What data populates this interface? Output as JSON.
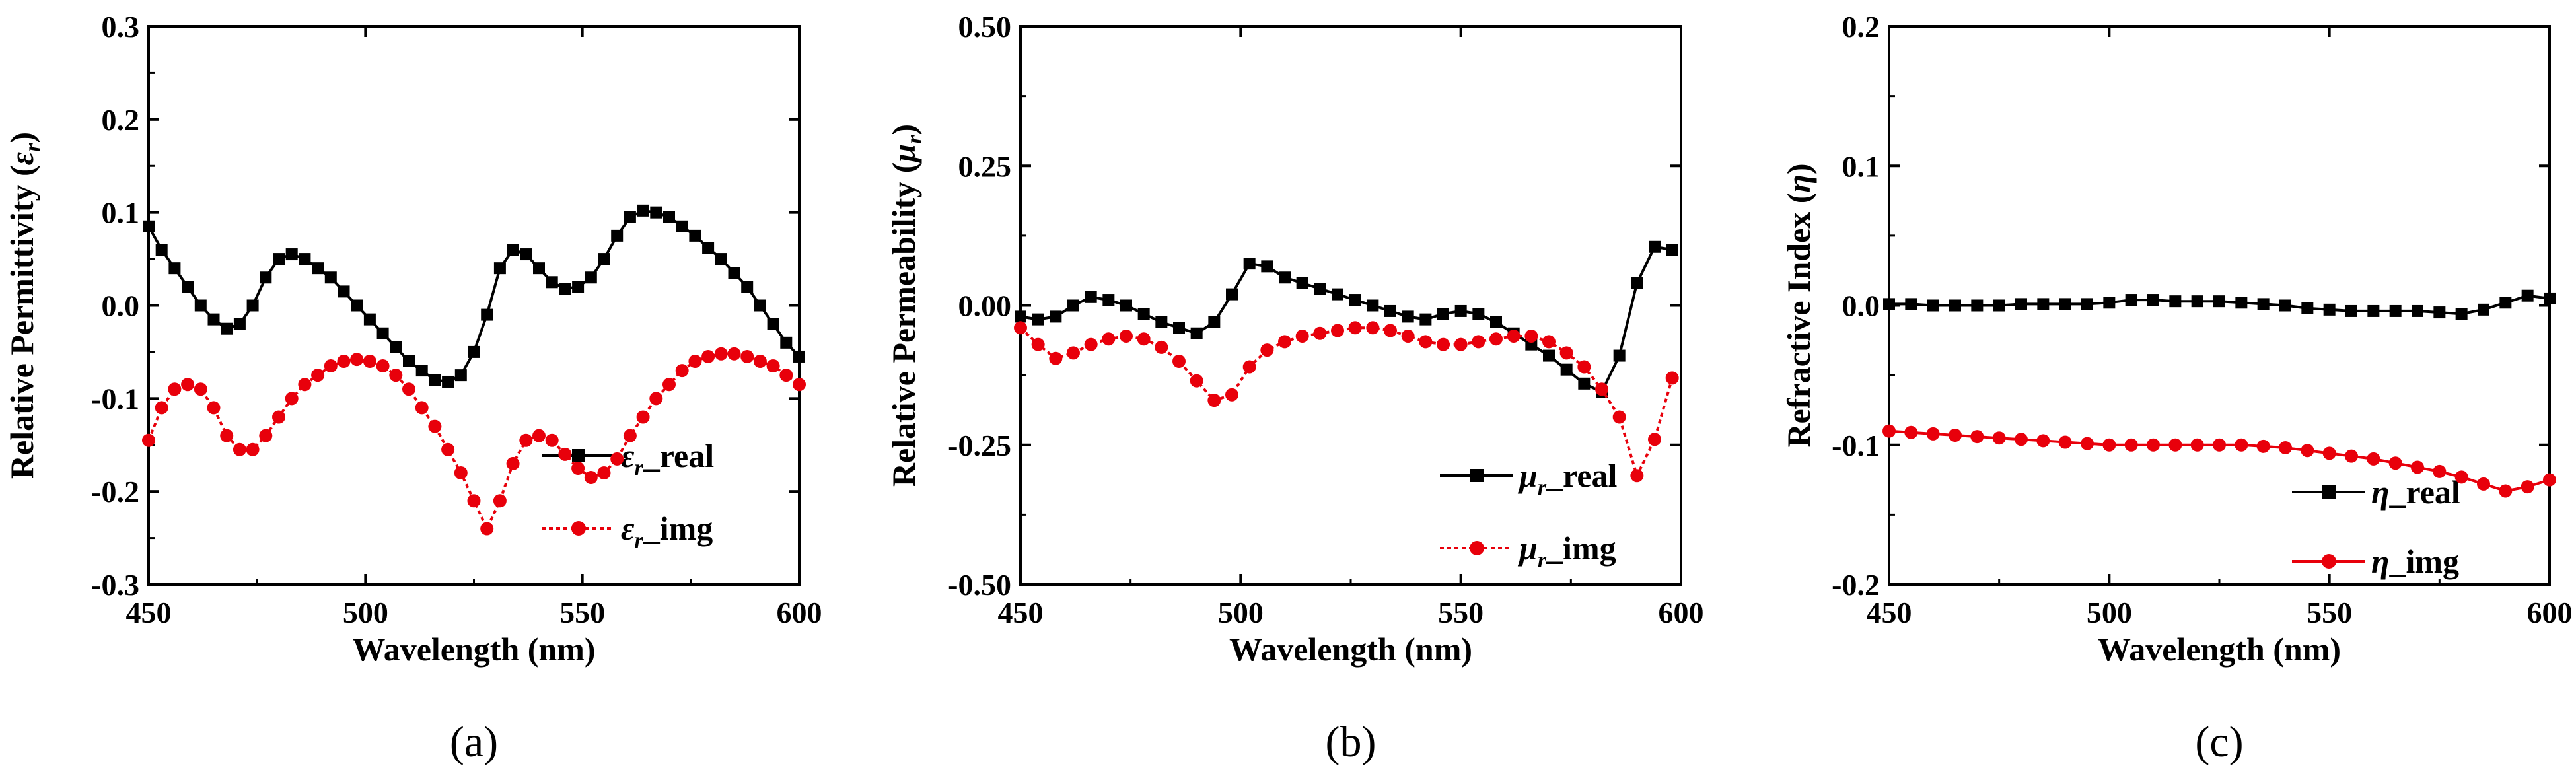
{
  "chart_data": [
    {
      "type": "line",
      "panel_label": "(a)",
      "xlabel": "Wavelength (nm)",
      "ylabel_prefix": "Relative Permittivity (",
      "ylabel_symbol": "ε",
      "ylabel_sub": "r",
      "ylabel_suffix": ")",
      "xlim": [
        450,
        600
      ],
      "ylim": [
        -0.3,
        0.3
      ],
      "xticks": [
        450,
        500,
        550,
        600
      ],
      "xtick_labels": [
        "450",
        "500",
        "550",
        "600"
      ],
      "yticks": [
        -0.3,
        -0.2,
        -0.1,
        0.0,
        0.1,
        0.2,
        0.3
      ],
      "ytick_labels": [
        "-0.3",
        "-0.2",
        "-0.1",
        "0.0",
        "0.1",
        "0.2",
        "0.3"
      ],
      "legend_position": "lower-right",
      "series": [
        {
          "name": "ε_r_real",
          "legend_symbol": "ε",
          "legend_sub": "r",
          "legend_suffix": "_real",
          "color": "#000000",
          "marker": "square",
          "dash": false,
          "x": [
            450,
            453,
            456,
            459,
            462,
            465,
            468,
            471,
            474,
            477,
            480,
            483,
            486,
            489,
            492,
            495,
            498,
            501,
            504,
            507,
            510,
            513,
            516,
            519,
            522,
            525,
            528,
            531,
            534,
            537,
            540,
            543,
            546,
            549,
            552,
            555,
            558,
            561,
            564,
            567,
            570,
            573,
            576,
            579,
            582,
            585,
            588,
            591,
            594,
            597,
            600
          ],
          "y": [
            0.085,
            0.06,
            0.04,
            0.02,
            0.0,
            -0.015,
            -0.025,
            -0.02,
            0.0,
            0.03,
            0.05,
            0.055,
            0.05,
            0.04,
            0.03,
            0.015,
            0.0,
            -0.015,
            -0.03,
            -0.045,
            -0.06,
            -0.07,
            -0.08,
            -0.082,
            -0.075,
            -0.05,
            -0.01,
            0.04,
            0.06,
            0.055,
            0.04,
            0.025,
            0.018,
            0.02,
            0.03,
            0.05,
            0.075,
            0.095,
            0.102,
            0.1,
            0.095,
            0.085,
            0.075,
            0.062,
            0.05,
            0.035,
            0.02,
            0.0,
            -0.02,
            -0.04,
            -0.055
          ]
        },
        {
          "name": "ε_r_img",
          "legend_symbol": "ε",
          "legend_sub": "r",
          "legend_suffix": "_img",
          "color": "#e8000b",
          "marker": "circle",
          "dash": true,
          "x": [
            450,
            453,
            456,
            459,
            462,
            465,
            468,
            471,
            474,
            477,
            480,
            483,
            486,
            489,
            492,
            495,
            498,
            501,
            504,
            507,
            510,
            513,
            516,
            519,
            522,
            525,
            528,
            531,
            534,
            537,
            540,
            543,
            546,
            549,
            552,
            555,
            558,
            561,
            564,
            567,
            570,
            573,
            576,
            579,
            582,
            585,
            588,
            591,
            594,
            597,
            600
          ],
          "y": [
            -0.145,
            -0.11,
            -0.09,
            -0.085,
            -0.09,
            -0.11,
            -0.14,
            -0.155,
            -0.155,
            -0.14,
            -0.12,
            -0.1,
            -0.085,
            -0.075,
            -0.065,
            -0.06,
            -0.058,
            -0.06,
            -0.065,
            -0.075,
            -0.09,
            -0.11,
            -0.13,
            -0.155,
            -0.18,
            -0.21,
            -0.24,
            -0.21,
            -0.17,
            -0.145,
            -0.14,
            -0.145,
            -0.16,
            -0.175,
            -0.185,
            -0.18,
            -0.165,
            -0.14,
            -0.12,
            -0.1,
            -0.085,
            -0.07,
            -0.06,
            -0.055,
            -0.052,
            -0.052,
            -0.055,
            -0.06,
            -0.065,
            -0.075,
            -0.085
          ]
        }
      ]
    },
    {
      "type": "line",
      "panel_label": "(b)",
      "xlabel": "Wavelength (nm)",
      "ylabel_prefix": "Relative Permeability (",
      "ylabel_symbol": "μ",
      "ylabel_sub": "r",
      "ylabel_suffix": ")",
      "xlim": [
        450,
        600
      ],
      "ylim": [
        -0.5,
        0.5
      ],
      "xticks": [
        450,
        500,
        550,
        600
      ],
      "xtick_labels": [
        "450",
        "500",
        "550",
        "600"
      ],
      "yticks": [
        -0.5,
        -0.25,
        0.0,
        0.25,
        0.5
      ],
      "ytick_labels": [
        "-0.50",
        "-0.25",
        "0.00",
        "0.25",
        "0.50"
      ],
      "legend_position": "lower-right",
      "series": [
        {
          "name": "μ_r_real",
          "legend_symbol": "μ",
          "legend_sub": "r",
          "legend_suffix": "_real",
          "color": "#000000",
          "marker": "square",
          "dash": false,
          "x": [
            450,
            454,
            458,
            462,
            466,
            470,
            474,
            478,
            482,
            486,
            490,
            494,
            498,
            502,
            506,
            510,
            514,
            518,
            522,
            526,
            530,
            534,
            538,
            542,
            546,
            550,
            554,
            558,
            562,
            566,
            570,
            574,
            578,
            582,
            586,
            590,
            594,
            598
          ],
          "y": [
            -0.02,
            -0.025,
            -0.02,
            0.0,
            0.015,
            0.01,
            0.0,
            -0.015,
            -0.03,
            -0.04,
            -0.05,
            -0.03,
            0.02,
            0.075,
            0.07,
            0.05,
            0.04,
            0.03,
            0.02,
            0.01,
            0.0,
            -0.01,
            -0.02,
            -0.025,
            -0.015,
            -0.01,
            -0.015,
            -0.03,
            -0.05,
            -0.07,
            -0.09,
            -0.115,
            -0.14,
            -0.155,
            -0.09,
            0.04,
            0.105,
            0.1
          ]
        },
        {
          "name": "μ_r_img",
          "legend_symbol": "μ",
          "legend_sub": "r",
          "legend_suffix": "_img",
          "color": "#e8000b",
          "marker": "circle",
          "dash": true,
          "x": [
            450,
            454,
            458,
            462,
            466,
            470,
            474,
            478,
            482,
            486,
            490,
            494,
            498,
            502,
            506,
            510,
            514,
            518,
            522,
            526,
            530,
            534,
            538,
            542,
            546,
            550,
            554,
            558,
            562,
            566,
            570,
            574,
            578,
            582,
            586,
            590,
            594,
            598
          ],
          "y": [
            -0.04,
            -0.07,
            -0.095,
            -0.085,
            -0.07,
            -0.06,
            -0.055,
            -0.06,
            -0.075,
            -0.1,
            -0.135,
            -0.17,
            -0.16,
            -0.11,
            -0.08,
            -0.065,
            -0.055,
            -0.05,
            -0.045,
            -0.04,
            -0.04,
            -0.045,
            -0.055,
            -0.065,
            -0.07,
            -0.07,
            -0.065,
            -0.06,
            -0.055,
            -0.055,
            -0.065,
            -0.085,
            -0.11,
            -0.15,
            -0.2,
            -0.305,
            -0.24,
            -0.13
          ]
        }
      ]
    },
    {
      "type": "line",
      "panel_label": "(c)",
      "xlabel": "Wavelength (nm)",
      "ylabel_prefix": "Refractive Index (",
      "ylabel_symbol": "η",
      "ylabel_sub": "",
      "ylabel_suffix": ")",
      "xlim": [
        450,
        600
      ],
      "ylim": [
        -0.2,
        0.2
      ],
      "xticks": [
        450,
        500,
        550,
        600
      ],
      "xtick_labels": [
        "450",
        "500",
        "550",
        "600"
      ],
      "yticks": [
        -0.2,
        -0.1,
        0.0,
        0.1,
        0.2
      ],
      "ytick_labels": [
        "-0.2",
        "-0.1",
        "0.0",
        "0.1",
        "0.2"
      ],
      "legend_position": "lower-right",
      "series": [
        {
          "name": "η_real",
          "legend_symbol": "η",
          "legend_sub": "",
          "legend_suffix": "_real",
          "color": "#000000",
          "marker": "square",
          "dash": false,
          "x": [
            450,
            455,
            460,
            465,
            470,
            475,
            480,
            485,
            490,
            495,
            500,
            505,
            510,
            515,
            520,
            525,
            530,
            535,
            540,
            545,
            550,
            555,
            560,
            565,
            570,
            575,
            580,
            585,
            590,
            595,
            600
          ],
          "y": [
            0.001,
            0.001,
            0.0,
            0.0,
            0.0,
            0.0,
            0.001,
            0.001,
            0.001,
            0.001,
            0.002,
            0.004,
            0.004,
            0.003,
            0.003,
            0.003,
            0.002,
            0.001,
            0.0,
            -0.002,
            -0.003,
            -0.004,
            -0.004,
            -0.004,
            -0.004,
            -0.005,
            -0.006,
            -0.003,
            0.002,
            0.007,
            0.005
          ]
        },
        {
          "name": "η_img",
          "legend_symbol": "η",
          "legend_sub": "",
          "legend_suffix": "_img",
          "color": "#e8000b",
          "marker": "circle",
          "dash": false,
          "x": [
            450,
            455,
            460,
            465,
            470,
            475,
            480,
            485,
            490,
            495,
            500,
            505,
            510,
            515,
            520,
            525,
            530,
            535,
            540,
            545,
            550,
            555,
            560,
            565,
            570,
            575,
            580,
            585,
            590,
            595,
            600
          ],
          "y": [
            -0.09,
            -0.091,
            -0.092,
            -0.093,
            -0.094,
            -0.095,
            -0.096,
            -0.097,
            -0.098,
            -0.099,
            -0.1,
            -0.1,
            -0.1,
            -0.1,
            -0.1,
            -0.1,
            -0.1,
            -0.101,
            -0.102,
            -0.104,
            -0.106,
            -0.108,
            -0.11,
            -0.113,
            -0.116,
            -0.119,
            -0.123,
            -0.128,
            -0.133,
            -0.13,
            -0.125
          ]
        }
      ]
    }
  ]
}
